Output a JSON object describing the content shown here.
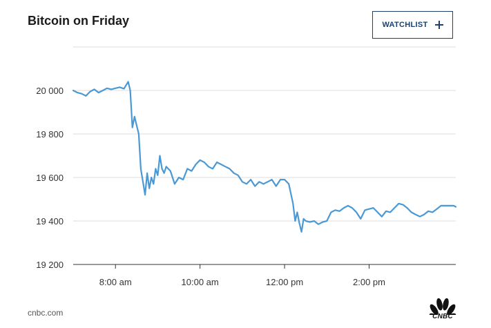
{
  "header": {
    "title": "Bitcoin on Friday",
    "watchlist_label": "WATCHLIST"
  },
  "footer": {
    "source": "cnbc.com",
    "logo_text": "CNBC"
  },
  "colors": {
    "line": "#4a98d4",
    "grid": "#dcdcdc",
    "button_border": "#1c3f6e"
  },
  "chart_data": {
    "type": "line",
    "title": "Bitcoin on Friday",
    "xlabel": "",
    "ylabel": "",
    "ylim": [
      19200,
      20200
    ],
    "xlim": [
      7.0,
      16.05
    ],
    "y_ticks": [
      {
        "value": 20000,
        "label": "20 000"
      },
      {
        "value": 19800,
        "label": "19 800"
      },
      {
        "value": 19600,
        "label": "19 600"
      },
      {
        "value": 19400,
        "label": "19 400"
      },
      {
        "value": 19200,
        "label": "19 200"
      }
    ],
    "x_ticks": [
      {
        "value": 8,
        "label": "8:00 am"
      },
      {
        "value": 10,
        "label": "10:00 am"
      },
      {
        "value": 12,
        "label": "12:00 pm"
      },
      {
        "value": 14,
        "label": "2:00 pm"
      }
    ],
    "grid": true,
    "legend": "none",
    "series": [
      {
        "x": [
          7.0,
          7.1,
          7.2,
          7.3,
          7.4,
          7.5,
          7.6,
          7.7,
          7.8,
          7.9,
          8.0,
          8.1,
          8.2,
          8.3,
          8.35,
          8.4,
          8.45,
          8.5,
          8.55,
          8.6,
          8.7,
          8.75,
          8.8,
          8.85,
          8.9,
          8.95,
          9.0,
          9.05,
          9.1,
          9.15,
          9.2,
          9.3,
          9.4,
          9.5,
          9.6,
          9.7,
          9.8,
          9.9,
          10.0,
          10.1,
          10.2,
          10.3,
          10.4,
          10.5,
          10.6,
          10.7,
          10.8,
          10.9,
          11.0,
          11.1,
          11.2,
          11.3,
          11.4,
          11.5,
          11.6,
          11.7,
          11.8,
          11.9,
          12.0,
          12.1,
          12.2,
          12.25,
          12.3,
          12.35,
          12.4,
          12.45,
          12.5,
          12.6,
          12.7,
          12.8,
          12.9,
          13.0,
          13.1,
          13.2,
          13.3,
          13.4,
          13.5,
          13.6,
          13.7,
          13.8,
          13.9,
          14.0,
          14.1,
          14.2,
          14.3,
          14.4,
          14.5,
          14.6,
          14.7,
          14.8,
          14.9,
          15.0,
          15.1,
          15.2,
          15.3,
          15.4,
          15.5,
          15.6,
          15.7,
          15.8,
          15.9,
          16.0,
          16.05
        ],
        "y": [
          20000,
          19990,
          19985,
          19975,
          19995,
          20005,
          19990,
          20000,
          20010,
          20005,
          20010,
          20015,
          20008,
          20040,
          20000,
          19830,
          19880,
          19840,
          19800,
          19640,
          19520,
          19620,
          19550,
          19600,
          19570,
          19640,
          19610,
          19700,
          19640,
          19620,
          19650,
          19630,
          19570,
          19600,
          19590,
          19640,
          19630,
          19660,
          19680,
          19670,
          19650,
          19640,
          19670,
          19660,
          19650,
          19640,
          19620,
          19610,
          19580,
          19570,
          19590,
          19560,
          19580,
          19570,
          19580,
          19590,
          19560,
          19590,
          19590,
          19570,
          19480,
          19400,
          19440,
          19390,
          19350,
          19410,
          19400,
          19395,
          19400,
          19385,
          19395,
          19400,
          19440,
          19450,
          19445,
          19460,
          19470,
          19460,
          19440,
          19410,
          19450,
          19455,
          19460,
          19440,
          19420,
          19445,
          19440,
          19460,
          19480,
          19475,
          19460,
          19440,
          19430,
          19420,
          19430,
          19445,
          19440,
          19455,
          19470,
          19470,
          19470,
          19470,
          19465
        ]
      }
    ]
  }
}
